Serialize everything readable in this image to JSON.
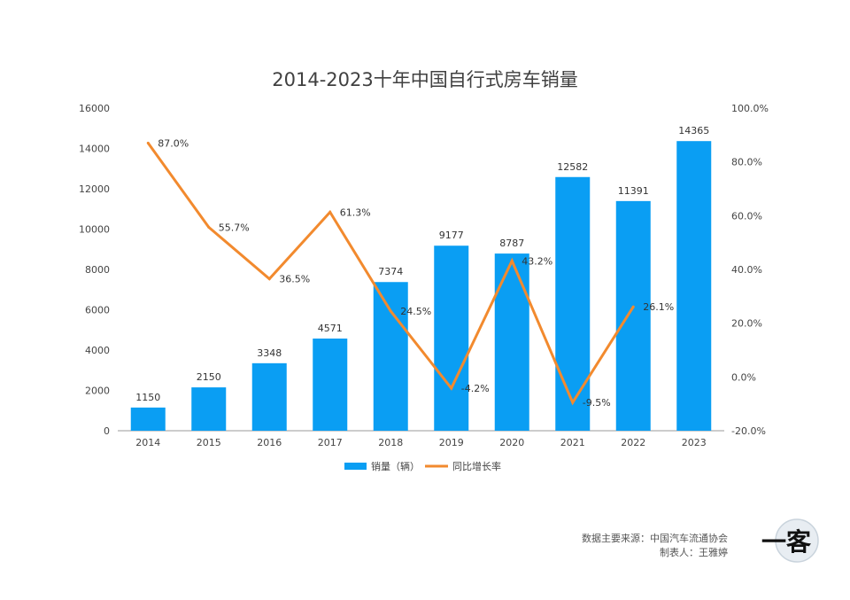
{
  "colors": {
    "bar": "#0a9ef3",
    "line": "#f28a2e",
    "axis": "#9a9a9a"
  },
  "chart_data": {
    "type": "bar",
    "title": "2014-2023十年中国自行式房车销量",
    "categories": [
      "2014",
      "2015",
      "2016",
      "2017",
      "2018",
      "2019",
      "2020",
      "2021",
      "2022",
      "2023"
    ],
    "series": [
      {
        "name": "销量（辆）",
        "type": "bar",
        "axis": "left",
        "values": [
          1150,
          2150,
          3348,
          4571,
          7374,
          9177,
          8787,
          12582,
          11391,
          14365
        ],
        "labels": [
          "1150",
          "2150",
          "3348",
          "4571",
          "7374",
          "9177",
          "8787",
          "12582",
          "11391",
          "14365"
        ]
      },
      {
        "name": "同比增长率",
        "type": "line",
        "axis": "right",
        "values": [
          87.0,
          55.7,
          36.5,
          61.3,
          24.5,
          -4.2,
          43.2,
          -9.5,
          26.1,
          null
        ],
        "labels": [
          "87.0%",
          "55.7%",
          "36.5%",
          "61.3%",
          "24.5%",
          "-4.2%",
          "43.2%",
          "-9.5%",
          "26.1%",
          ""
        ]
      }
    ],
    "ylim_left": [
      0,
      16000
    ],
    "yticks_left": [
      "0",
      "2000",
      "4000",
      "6000",
      "8000",
      "10000",
      "12000",
      "14000",
      "16000"
    ],
    "ylim_right": [
      -20,
      100
    ],
    "yticks_right": [
      "-20.0%",
      "0.0%",
      "20.0%",
      "40.0%",
      "60.0%",
      "80.0%",
      "100.0%"
    ],
    "grid": false,
    "legend": "bottom"
  },
  "source_text": {
    "line1": "数据主要来源：中国汽车流通协会",
    "line2": "制表人：王雅婷"
  },
  "logo": {
    "text": "一客"
  }
}
